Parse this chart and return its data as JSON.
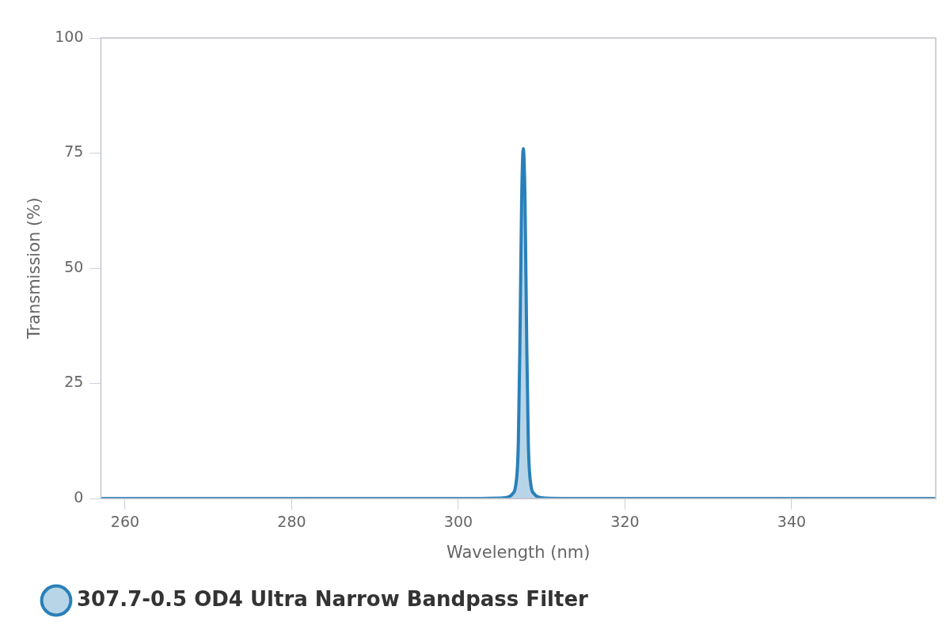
{
  "chart_data": {
    "type": "area",
    "xlabel": "Wavelength (nm)",
    "ylabel": "Transmission (%)",
    "xlim": [
      257.1,
      357.3
    ],
    "xticks": [
      260,
      280,
      300,
      320,
      340
    ],
    "ylim": [
      0,
      100
    ],
    "yticks": [
      0,
      25,
      50,
      75,
      100
    ],
    "grid": false,
    "legend": "bottom",
    "marker": "none",
    "series": [
      {
        "name": "307.7-0.5 OD4 Ultra Narrow Bandpass Filter",
        "color": "#2980b9",
        "x": [
          257.1,
          300,
          305,
          306,
          306.5,
          306.9,
          307.2,
          307.4,
          307.6,
          307.8,
          308.0,
          308.2,
          308.4,
          308.7,
          309.1,
          309.6,
          310.5,
          315,
          357.3
        ],
        "values": [
          0,
          0,
          0.1,
          0.3,
          1,
          3,
          12,
          35,
          65,
          76,
          65,
          35,
          12,
          3,
          1,
          0.3,
          0.1,
          0,
          0
        ]
      }
    ]
  }
}
